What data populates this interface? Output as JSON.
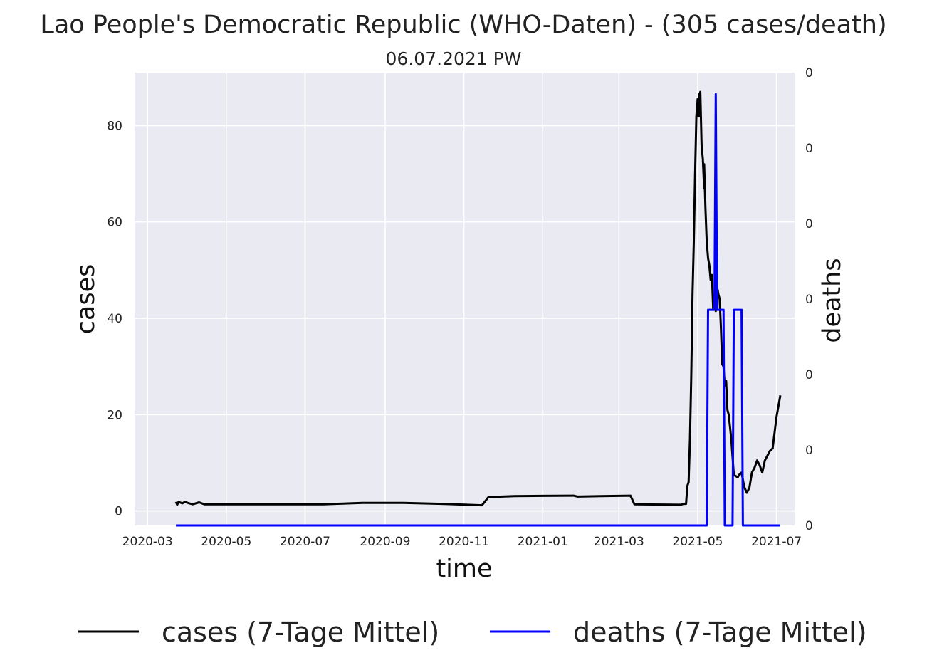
{
  "chart_data": {
    "type": "line",
    "title": "Lao People's Democratic Republic (WHO-Daten) - (305 cases/death)",
    "subtitle": "06.07.2021 PW",
    "xlabel": "time",
    "ylabel_left": "cases",
    "ylabel_right": "deaths",
    "x_ticks": [
      "2020-03",
      "2020-05",
      "2020-07",
      "2020-09",
      "2020-11",
      "2021-01",
      "2021-03",
      "2021-05",
      "2021-07"
    ],
    "x_range": [
      "2020-02-20",
      "2021-07-15"
    ],
    "y_ticks_left": [
      0,
      20,
      40,
      60,
      80
    ],
    "ylim_left": [
      -3,
      91
    ],
    "y_ticks_right": [
      "0",
      "0",
      "0",
      "0",
      "0",
      "0",
      "0"
    ],
    "ylim_right": [
      0,
      0.3
    ],
    "grid": true,
    "legend_position": "bottom",
    "colors": {
      "cases": "#000000",
      "deaths": "#0000ff",
      "axis_background": "#eaeaf2",
      "grid": "#ffffff",
      "deaths_label": "#0000ff"
    },
    "series": [
      {
        "name": "cases (7-Tage Mittel)",
        "axis": "left",
        "points": [
          [
            "2020-03-23",
            1.9
          ],
          [
            "2020-03-24",
            1.3
          ],
          [
            "2020-03-25",
            1.9
          ],
          [
            "2020-03-28",
            1.6
          ],
          [
            "2020-03-30",
            1.9
          ],
          [
            "2020-04-01",
            1.7
          ],
          [
            "2020-04-05",
            1.4
          ],
          [
            "2020-04-10",
            1.8
          ],
          [
            "2020-04-14",
            1.4
          ],
          [
            "2020-05-15",
            1.4
          ],
          [
            "2020-07-15",
            1.4
          ],
          [
            "2020-08-15",
            1.7
          ],
          [
            "2020-09-15",
            1.7
          ],
          [
            "2020-10-15",
            1.5
          ],
          [
            "2020-11-15",
            1.2
          ],
          [
            "2020-11-20",
            2.9
          ],
          [
            "2020-12-10",
            3.1
          ],
          [
            "2021-01-25",
            3.2
          ],
          [
            "2021-01-28",
            3.0
          ],
          [
            "2021-02-15",
            3.1
          ],
          [
            "2021-03-10",
            3.2
          ],
          [
            "2021-03-13",
            1.4
          ],
          [
            "2021-04-18",
            1.3
          ],
          [
            "2021-04-20",
            1.5
          ],
          [
            "2021-04-22",
            1.5
          ],
          [
            "2021-04-23",
            5.2
          ],
          [
            "2021-04-24",
            6.0
          ],
          [
            "2021-04-25",
            15.0
          ],
          [
            "2021-04-26",
            28.0
          ],
          [
            "2021-04-27",
            45.0
          ],
          [
            "2021-04-28",
            56.0
          ],
          [
            "2021-04-29",
            70.0
          ],
          [
            "2021-04-30",
            82.0
          ],
          [
            "2021-05-01",
            85.5
          ],
          [
            "2021-05-01",
            82.0
          ],
          [
            "2021-05-02",
            86.5
          ],
          [
            "2021-05-02",
            82.0
          ],
          [
            "2021-05-03",
            87.0
          ],
          [
            "2021-05-04",
            76.0
          ],
          [
            "2021-05-05",
            73.0
          ],
          [
            "2021-05-06",
            67.0
          ],
          [
            "2021-05-06",
            72.0
          ],
          [
            "2021-05-07",
            63.0
          ],
          [
            "2021-05-08",
            56.0
          ],
          [
            "2021-05-09",
            52.5
          ],
          [
            "2021-05-10",
            51.0
          ],
          [
            "2021-05-11",
            48.0
          ],
          [
            "2021-05-12",
            49.0
          ],
          [
            "2021-05-13",
            42.0
          ],
          [
            "2021-05-14",
            45.0
          ],
          [
            "2021-05-15",
            41.5
          ],
          [
            "2021-05-16",
            46.5
          ],
          [
            "2021-05-17",
            45.0
          ],
          [
            "2021-05-18",
            44.0
          ],
          [
            "2021-05-19",
            38.0
          ],
          [
            "2021-05-20",
            30.5
          ],
          [
            "2021-05-21",
            30.0
          ],
          [
            "2021-05-22",
            26.0
          ],
          [
            "2021-05-23",
            27.0
          ],
          [
            "2021-05-24",
            21.0
          ],
          [
            "2021-05-25",
            20.0
          ],
          [
            "2021-05-27",
            15.0
          ],
          [
            "2021-05-29",
            7.5
          ],
          [
            "2021-06-01",
            7.0
          ],
          [
            "2021-06-02",
            7.5
          ],
          [
            "2021-06-04",
            8.0
          ],
          [
            "2021-06-06",
            5.0
          ],
          [
            "2021-06-08",
            3.8
          ],
          [
            "2021-06-10",
            4.8
          ],
          [
            "2021-06-12",
            8.0
          ],
          [
            "2021-06-14",
            9.0
          ],
          [
            "2021-06-16",
            10.5
          ],
          [
            "2021-06-18",
            9.5
          ],
          [
            "2021-06-20",
            8.0
          ],
          [
            "2021-06-22",
            10.5
          ],
          [
            "2021-06-26",
            12.5
          ],
          [
            "2021-06-28",
            13.0
          ],
          [
            "2021-07-01",
            19.5
          ],
          [
            "2021-07-04",
            24.0
          ]
        ]
      },
      {
        "name": "deaths (7-Tage Mittel)",
        "axis": "right",
        "points": [
          [
            "2020-03-23",
            0.0
          ],
          [
            "2021-05-08",
            0.0
          ],
          [
            "2021-05-09",
            0.1429
          ],
          [
            "2021-05-14",
            0.1429
          ],
          [
            "2021-05-15",
            0.2857
          ],
          [
            "2021-05-16",
            0.1429
          ],
          [
            "2021-05-21",
            0.1429
          ],
          [
            "2021-05-22",
            0.0
          ],
          [
            "2021-05-28",
            0.0
          ],
          [
            "2021-05-29",
            0.1429
          ],
          [
            "2021-06-04",
            0.1429
          ],
          [
            "2021-06-05",
            0.0
          ],
          [
            "2021-07-04",
            0.0
          ]
        ]
      }
    ]
  }
}
